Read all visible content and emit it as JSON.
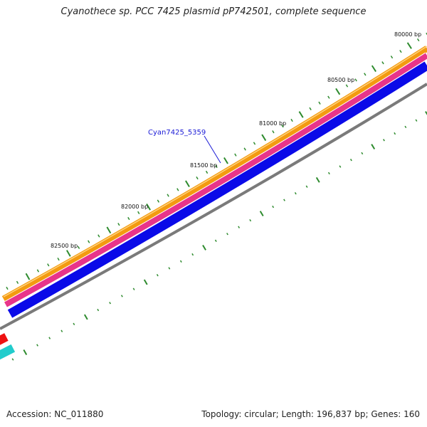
{
  "map": {
    "title": "Cyanothece sp. PCC 7425 plasmid pP742501, complete sequence",
    "accession_text": "Accession: NC_011880",
    "summary_text": "Topology: circular; Length: 196,837 bp; Genes: 160",
    "gene_label": "Cyan7425_5359",
    "ticks": [
      "80000 bp",
      "80500 bp",
      "81000 bp",
      "81500 bp",
      "82000 bp",
      "82500 bp"
    ]
  },
  "colors": {
    "track_orange": "#f39a10",
    "track_pink": "#e8348a",
    "track_blue": "#0a0ae8",
    "track_gray": "#7a7a7a",
    "tick_green": "#2e8b2e",
    "track_red": "#ee1111",
    "track_cyan": "#22cccc",
    "label_blue": "#1a1ad6"
  }
}
